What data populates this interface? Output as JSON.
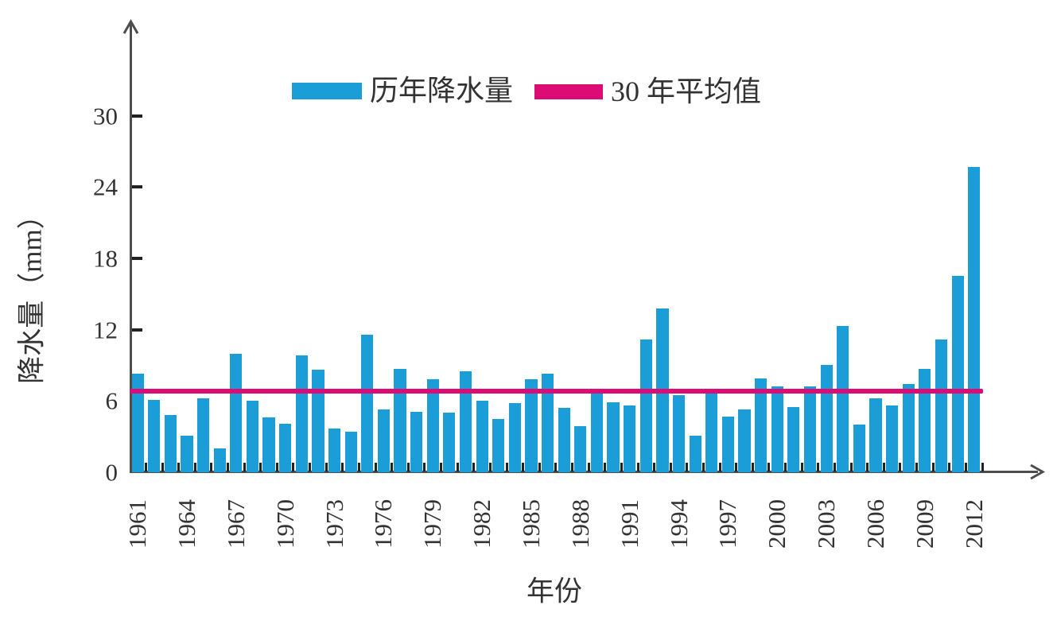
{
  "chart_data": {
    "type": "bar",
    "title": "",
    "xlabel": "年份",
    "ylabel": "降水量（mm）",
    "categories": [
      1961,
      1962,
      1963,
      1964,
      1965,
      1966,
      1967,
      1968,
      1969,
      1970,
      1971,
      1972,
      1973,
      1974,
      1975,
      1976,
      1977,
      1978,
      1979,
      1980,
      1981,
      1982,
      1983,
      1984,
      1985,
      1986,
      1987,
      1988,
      1989,
      1990,
      1991,
      1992,
      1993,
      1994,
      1995,
      1996,
      1997,
      1998,
      1999,
      2000,
      2001,
      2002,
      2003,
      2004,
      2005,
      2006,
      2007,
      2008,
      2009,
      2010,
      2011,
      2012
    ],
    "series": [
      {
        "name": "历年降水量",
        "values": [
          8.3,
          6.1,
          4.8,
          3.1,
          6.2,
          2.0,
          10.0,
          6.0,
          4.6,
          4.1,
          9.8,
          8.6,
          3.7,
          3.4,
          11.6,
          5.3,
          8.7,
          5.1,
          7.8,
          5.0,
          8.5,
          6.0,
          4.5,
          5.8,
          7.8,
          8.3,
          5.4,
          3.9,
          6.7,
          5.9,
          5.6,
          11.2,
          13.8,
          6.5,
          3.1,
          6.6,
          4.7,
          5.3,
          7.9,
          7.2,
          5.5,
          7.2,
          9.0,
          12.3,
          4.0,
          6.2,
          5.6,
          7.4,
          8.7,
          11.2,
          16.5,
          25.7
        ]
      }
    ],
    "average_line": {
      "name": "30 年平均值",
      "value": 6.8
    },
    "yticks": [
      0,
      6,
      12,
      18,
      24,
      30
    ],
    "ytick_labels": [
      "0",
      "6",
      "12",
      "18",
      "24",
      "30"
    ],
    "ylim": [
      0,
      38
    ],
    "xtick_label_step": 3,
    "grid": "off",
    "legend_position": "top-center",
    "colors": {
      "bar": "#1b9ed8",
      "average": "#dc0c74",
      "axis": "#4d4d4d",
      "text": "#333333"
    }
  },
  "legend": {
    "bar_label": "历年降水量",
    "avg_label": "30 年平均值"
  }
}
